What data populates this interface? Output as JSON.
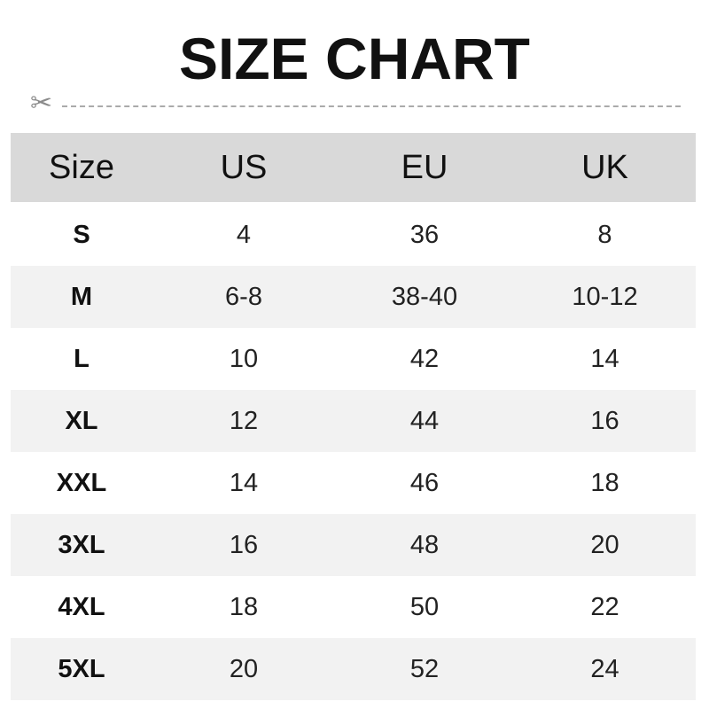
{
  "title": "SIZE CHART",
  "icons": {
    "cut_marker": "scissors-icon"
  },
  "colors": {
    "header_bg": "#d9d9d9",
    "alt_row_bg": "#f2f2f2"
  },
  "table": {
    "headers": [
      "Size",
      "US",
      "EU",
      "UK"
    ],
    "rows": [
      [
        "S",
        "4",
        "36",
        "8"
      ],
      [
        "M",
        "6-8",
        "38-40",
        "10-12"
      ],
      [
        "L",
        "10",
        "42",
        "14"
      ],
      [
        "XL",
        "12",
        "44",
        "16"
      ],
      [
        "XXL",
        "14",
        "46",
        "18"
      ],
      [
        "3XL",
        "16",
        "48",
        "20"
      ],
      [
        "4XL",
        "18",
        "50",
        "22"
      ],
      [
        "5XL",
        "20",
        "52",
        "24"
      ]
    ]
  }
}
